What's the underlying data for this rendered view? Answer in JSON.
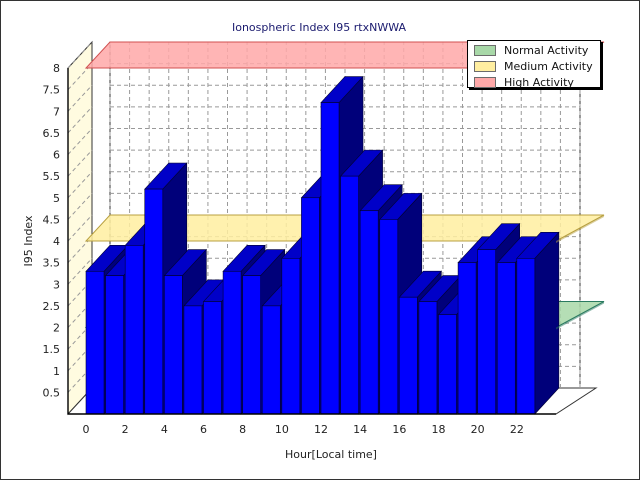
{
  "chart_data": {
    "type": "bar",
    "title": "Ionospheric Index I95 rtxNWWA",
    "xlabel": "Hour[Local time]",
    "ylabel": "I95 Index",
    "ylim": [
      0,
      8
    ],
    "yticks": [
      "0.5",
      "1",
      "1.5",
      "2",
      "2.5",
      "3",
      "3.5",
      "4",
      "4.5",
      "5",
      "5.5",
      "6",
      "6.5",
      "7",
      "7.5",
      "8"
    ],
    "xticks": [
      "0",
      "2",
      "4",
      "6",
      "8",
      "10",
      "12",
      "14",
      "16",
      "18",
      "20",
      "22"
    ],
    "x": [
      0,
      1,
      2,
      3,
      4,
      5,
      6,
      7,
      8,
      9,
      10,
      11,
      12,
      13,
      14,
      15,
      16,
      17,
      18,
      19,
      20,
      21,
      22,
      23
    ],
    "values": [
      3.3,
      3.2,
      3.9,
      5.2,
      3.2,
      2.5,
      2.6,
      3.3,
      3.2,
      2.5,
      3.6,
      5.0,
      7.2,
      5.5,
      4.7,
      4.5,
      2.7,
      2.6,
      2.3,
      3.5,
      3.8,
      3.5,
      3.6,
      0
    ],
    "bar_color": "#0000ff",
    "bar_top_color": "#0000c8",
    "bar_side_color": "#00007a",
    "grid": true,
    "legend_position": "top-right",
    "bands": [
      {
        "name": "Normal Activity",
        "level": 2,
        "color": "#a8d8a8",
        "edge_color": "#2a7a60"
      },
      {
        "name": "Medium Activity",
        "level": 4,
        "color": "#ffeea0",
        "edge_color": "#b8a040"
      },
      {
        "name": "High Activity",
        "level": 8,
        "color": "#ffa8a8",
        "edge_color": "#d05050"
      }
    ]
  }
}
